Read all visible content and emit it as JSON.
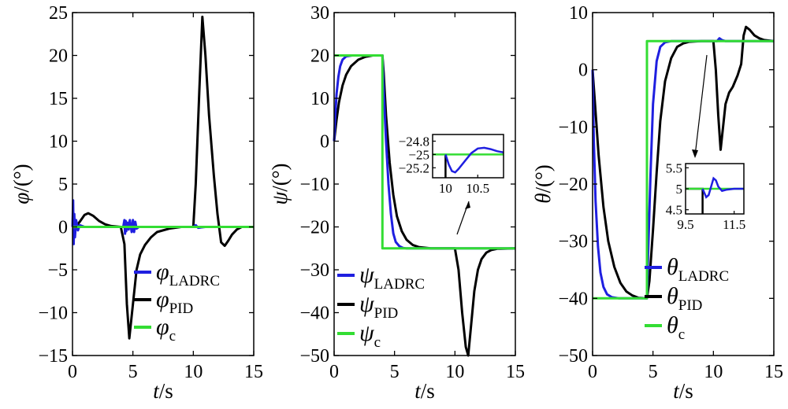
{
  "chart_data": [
    {
      "type": "line",
      "title": "",
      "xlabel": "t/s",
      "ylabel": "φ/(°)",
      "xlim": [
        0,
        15
      ],
      "ylim": [
        -15,
        25
      ],
      "xticks": [
        "0",
        "5",
        "10",
        "15"
      ],
      "yticks": [
        "25",
        "20",
        "15",
        "10",
        "5",
        "0",
        "−5",
        "−10",
        "−15"
      ],
      "legend_position": "bottom-right",
      "series": [
        {
          "name": "φ_LADRC",
          "color": "#1f1fe0",
          "x": [
            0,
            0.05,
            0.1,
            0.15,
            0.2,
            0.3,
            0.45,
            0.6,
            1.0,
            4.2,
            4.3,
            4.35,
            4.4,
            4.45,
            4.55,
            4.65,
            4.75,
            4.9,
            5.0,
            5.1,
            5.2,
            5.3,
            5.5,
            10,
            10.2,
            10.4,
            11,
            15
          ],
          "y": [
            0,
            3.1,
            -2.0,
            1.5,
            -1.2,
            0.8,
            -0.4,
            0.2,
            0,
            0,
            0.8,
            -0.8,
            0.7,
            -0.5,
            0.5,
            -0.3,
            0.8,
            -0.6,
            0.8,
            -0.6,
            0.6,
            -0.2,
            0,
            0,
            0.2,
            -0.1,
            0,
            0
          ]
        },
        {
          "name": "φ_PID",
          "color": "#000000",
          "x": [
            0,
            0.3,
            0.6,
            1.0,
            1.3,
            1.7,
            2.2,
            2.7,
            3.2,
            4.0,
            4.3,
            4.5,
            4.7,
            5.0,
            5.3,
            5.6,
            6.0,
            6.5,
            7.0,
            8.0,
            9.0,
            10.0,
            10.2,
            10.5,
            10.75,
            11.0,
            11.3,
            11.7,
            12.0,
            12.3,
            12.6,
            12.9,
            13.2,
            13.6,
            14.0,
            15
          ],
          "y": [
            0,
            0.1,
            0.6,
            1.4,
            1.6,
            1.3,
            0.7,
            0.3,
            0.1,
            0,
            -2.0,
            -9.0,
            -13.0,
            -9.0,
            -5.0,
            -3.2,
            -2.1,
            -1.2,
            -0.6,
            -0.2,
            0,
            0,
            5.0,
            16.0,
            24.5,
            20.0,
            13.0,
            6.0,
            1.5,
            -1.8,
            -2.2,
            -1.6,
            -0.9,
            -0.3,
            0,
            0
          ]
        },
        {
          "name": "φ_c",
          "color": "#33dd33",
          "x": [
            0,
            15
          ],
          "y": [
            0,
            0
          ]
        }
      ]
    },
    {
      "type": "line",
      "title": "",
      "xlabel": "t/s",
      "ylabel": "ψ/(°)",
      "xlim": [
        0,
        15
      ],
      "ylim": [
        -50,
        30
      ],
      "xticks": [
        "0",
        "5",
        "10",
        "15"
      ],
      "yticks": [
        "30",
        "20",
        "10",
        "0",
        "−10",
        "−20",
        "−30",
        "−40",
        "−50"
      ],
      "legend_position": "bottom-left",
      "series": [
        {
          "name": "ψ_LADRC",
          "color": "#1f1fe0",
          "x": [
            0,
            0.1,
            0.2,
            0.35,
            0.5,
            0.7,
            1.0,
            1.5,
            2.0,
            4.0,
            4.1,
            4.3,
            4.5,
            4.7,
            4.9,
            5.1,
            5.4,
            5.7,
            6.0,
            7.0,
            15
          ],
          "y": [
            0,
            6,
            11,
            15,
            17.5,
            19,
            19.8,
            20,
            20,
            20,
            12,
            0,
            -10,
            -17,
            -21.5,
            -23.5,
            -24.5,
            -24.9,
            -25,
            -25,
            -25
          ]
        },
        {
          "name": "ψ_PID",
          "color": "#000000",
          "x": [
            0,
            0.2,
            0.4,
            0.7,
            1.0,
            1.4,
            2.0,
            2.6,
            3.2,
            4.0,
            4.1,
            4.3,
            4.6,
            4.9,
            5.2,
            5.6,
            6.0,
            6.5,
            7.0,
            8.0,
            10.0,
            10.3,
            10.6,
            10.9,
            11.1,
            11.3,
            11.6,
            11.9,
            12.2,
            12.6,
            13.0,
            13.5,
            15
          ],
          "y": [
            0,
            5,
            9,
            13,
            15.5,
            17.5,
            19,
            19.7,
            20,
            20,
            16,
            6,
            -5,
            -12.5,
            -17.5,
            -21,
            -23,
            -24.2,
            -24.7,
            -25,
            -25,
            -30,
            -40,
            -48,
            -50,
            -44,
            -35,
            -30,
            -27.5,
            -26,
            -25.4,
            -25.1,
            -25
          ]
        },
        {
          "name": "ψ_c",
          "color": "#33dd33",
          "x": [
            0,
            4,
            4,
            15
          ],
          "y": [
            20,
            20,
            -25,
            -25
          ]
        }
      ],
      "inset": {
        "xlim": [
          9.8,
          10.9
        ],
        "ylim": [
          -25.35,
          -24.7
        ],
        "xticks": [
          "10",
          "10.5"
        ],
        "yticks": [
          "−24.8",
          "−25",
          "−25.2"
        ],
        "series": [
          {
            "name": "LADRC",
            "color": "#1f1fe0",
            "x": [
              10,
              10.05,
              10.1,
              10.15,
              10.2,
              10.3,
              10.4,
              10.5,
              10.6,
              10.7,
              10.8,
              10.9
            ],
            "y": [
              -25,
              -25.15,
              -25.25,
              -25.27,
              -25.22,
              -25.1,
              -24.98,
              -24.91,
              -24.9,
              -24.92,
              -24.95,
              -24.97
            ]
          },
          {
            "name": "PID",
            "color": "#000000",
            "x": [
              10.0,
              10.0
            ],
            "y": [
              -25,
              -25.35
            ]
          },
          {
            "name": "c",
            "color": "#33dd33",
            "x": [
              9.8,
              10.9
            ],
            "y": [
              -25,
              -25
            ]
          }
        ]
      }
    },
    {
      "type": "line",
      "title": "",
      "xlabel": "t/s",
      "ylabel": "θ/(°)",
      "xlim": [
        0,
        15
      ],
      "ylim": [
        -50,
        10
      ],
      "xticks": [
        "0",
        "5",
        "10",
        "15"
      ],
      "yticks": [
        "10",
        "0",
        "−10",
        "−20",
        "−30",
        "−40",
        "−50"
      ],
      "legend_position": "bottom-right",
      "series": [
        {
          "name": "θ_LADRC",
          "color": "#1f1fe0",
          "x": [
            0,
            0.1,
            0.25,
            0.45,
            0.65,
            0.9,
            1.2,
            1.6,
            2.2,
            3.0,
            4.5,
            4.6,
            4.8,
            5.0,
            5.3,
            5.6,
            6.0,
            6.5,
            7.0,
            8.0,
            10.3,
            10.5,
            10.7,
            11.0,
            15
          ],
          "y": [
            0,
            -12,
            -23,
            -31,
            -35.5,
            -38,
            -39.3,
            -39.8,
            -40,
            -40,
            -40,
            -32,
            -18,
            -6,
            1.5,
            4,
            4.8,
            5,
            5,
            5,
            5,
            5.5,
            5.2,
            5,
            5
          ]
        },
        {
          "name": "θ_PID",
          "color": "#000000",
          "x": [
            0,
            0.2,
            0.5,
            0.9,
            1.3,
            1.8,
            2.3,
            2.8,
            3.3,
            3.8,
            4.5,
            4.7,
            5.0,
            5.3,
            5.6,
            6.0,
            6.5,
            7.0,
            7.5,
            8.0,
            9.0,
            10.0,
            10.2,
            10.4,
            10.6,
            10.8,
            11.0,
            11.3,
            11.6,
            12.0,
            12.3,
            12.5,
            12.7,
            13.0,
            13.4,
            13.8,
            14.2,
            15
          ],
          "y": [
            0,
            -6,
            -15,
            -24,
            -30,
            -34.5,
            -37.3,
            -38.8,
            -39.5,
            -39.9,
            -40,
            -37,
            -28,
            -18,
            -9,
            -2,
            2,
            4,
            4.6,
            4.9,
            5,
            5,
            0,
            -8,
            -14,
            -10,
            -6,
            -4,
            -3,
            -1,
            1,
            6,
            7.5,
            7,
            6,
            5.5,
            5.2,
            5
          ]
        },
        {
          "name": "θ_c",
          "color": "#33dd33",
          "x": [
            0,
            4.5,
            4.5,
            15
          ],
          "y": [
            -40,
            -40,
            5,
            5
          ]
        }
      ],
      "inset": {
        "xlim": [
          9.5,
          11.9
        ],
        "ylim": [
          4.4,
          5.6
        ],
        "xticks": [
          "9.5",
          "11.5"
        ],
        "yticks": [
          "5.5",
          "5",
          "4.5"
        ],
        "series": [
          {
            "name": "LADRC",
            "color": "#1f1fe0",
            "x": [
              10.2,
              10.35,
              10.45,
              10.55,
              10.65,
              10.75,
              10.85,
              11.0,
              11.2,
              11.5,
              11.9
            ],
            "y": [
              5,
              4.8,
              4.85,
              5.05,
              5.25,
              5.2,
              5.05,
              4.95,
              4.98,
              5,
              5
            ]
          },
          {
            "name": "PID",
            "color": "#000000",
            "x": [
              9.5,
              10.2,
              10.2
            ],
            "y": [
              5,
              5,
              4.4
            ]
          },
          {
            "name": "c",
            "color": "#33dd33",
            "x": [
              9.5,
              11.9
            ],
            "y": [
              5,
              5
            ]
          }
        ]
      }
    }
  ],
  "colors": {
    "ladrc": "#1f1fe0",
    "pid": "#000000",
    "command": "#33dd33",
    "axes": "#000000"
  }
}
